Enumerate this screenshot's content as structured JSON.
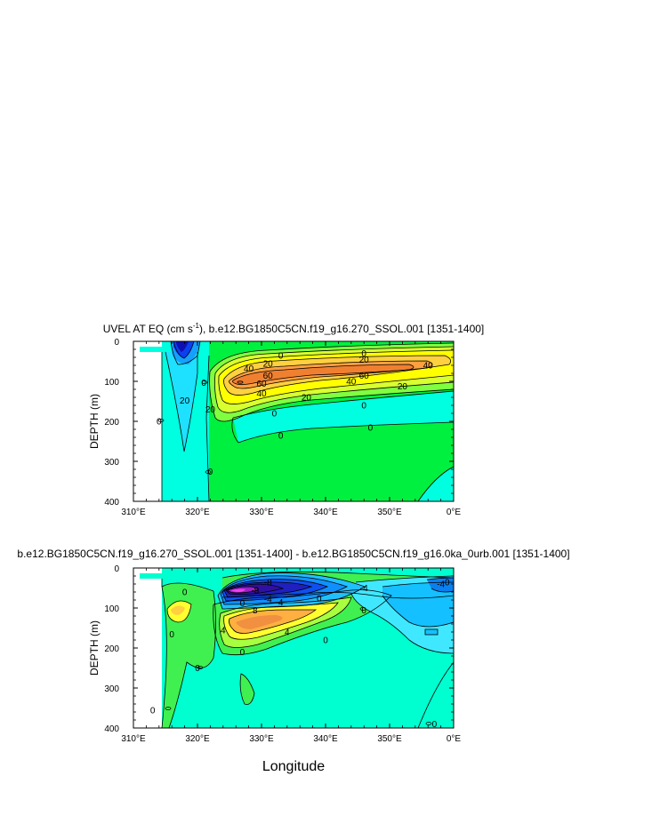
{
  "chart_data": [
    {
      "type": "contour",
      "title_prefix": "UVEL AT EQ (cm s",
      "title_sup": "-1",
      "title_suffix": "), b.e12.BG1850C5CN.f19_g16.270_SSOL.001 [1351-1400]",
      "ylabel": "DEPTH (m)",
      "xlabel": "",
      "xlim": [
        310,
        360
      ],
      "ylim": [
        400,
        0
      ],
      "xticks": [
        "310°E",
        "320°E",
        "330°E",
        "340°E",
        "350°E",
        "0°E"
      ],
      "xtick_values": [
        310,
        320,
        330,
        340,
        350,
        360
      ],
      "yticks": [
        "0",
        "100",
        "200",
        "300",
        "400"
      ],
      "ytick_values": [
        0,
        100,
        200,
        300,
        400
      ],
      "contour_labels": [
        {
          "text": "0",
          "x": 333,
          "y": 35
        },
        {
          "text": "0",
          "x": 346,
          "y": 30
        },
        {
          "text": "20",
          "x": 331,
          "y": 55
        },
        {
          "text": "20",
          "x": 346,
          "y": 45
        },
        {
          "text": "40",
          "x": 328,
          "y": 68
        },
        {
          "text": "40",
          "x": 356,
          "y": 60
        },
        {
          "text": "60",
          "x": 331,
          "y": 85
        },
        {
          "text": "60",
          "x": 346,
          "y": 85
        },
        {
          "text": "60",
          "x": 330,
          "y": 105
        },
        {
          "text": "40",
          "x": 344,
          "y": 100
        },
        {
          "text": "40",
          "x": 330,
          "y": 130
        },
        {
          "text": "20",
          "x": 337,
          "y": 140
        },
        {
          "text": "20",
          "x": 352,
          "y": 112
        },
        {
          "text": "20",
          "x": 318,
          "y": 148
        },
        {
          "text": "20",
          "x": 322,
          "y": 170
        },
        {
          "text": "0",
          "x": 332,
          "y": 180
        },
        {
          "text": "0",
          "x": 346,
          "y": 160
        },
        {
          "text": "0",
          "x": 333,
          "y": 235
        },
        {
          "text": "0",
          "x": 347,
          "y": 215
        },
        {
          "text": "0",
          "x": 314,
          "y": 200
        },
        {
          "text": "0",
          "x": 322,
          "y": 325
        },
        {
          "text": "0",
          "x": 321,
          "y": 103
        }
      ]
    },
    {
      "type": "contour",
      "title": "b.e12.BG1850C5CN.f19_g16.270_SSOL.001 [1351-1400] - b.e12.BG1850C5CN.f19_g16.0ka_0urb.001 [1351-1400]",
      "ylabel": "DEPTH (m)",
      "xlabel": "Longitude",
      "xlim": [
        310,
        360
      ],
      "ylim": [
        400,
        0
      ],
      "xticks": [
        "310°E",
        "320°E",
        "330°E",
        "340°E",
        "350°E",
        "0°E"
      ],
      "xtick_values": [
        310,
        320,
        330,
        340,
        350,
        360
      ],
      "yticks": [
        "0",
        "100",
        "200",
        "300",
        "400"
      ],
      "ytick_values": [
        0,
        100,
        200,
        300,
        400
      ],
      "contour_labels": [
        {
          "text": "-8",
          "x": 331,
          "y": 35
        },
        {
          "text": "-4",
          "x": 346,
          "y": 50
        },
        {
          "text": "-8",
          "x": 329,
          "y": 55
        },
        {
          "text": "0",
          "x": 359,
          "y": 35
        },
        {
          "text": "-4",
          "x": 358,
          "y": 40
        },
        {
          "text": "0",
          "x": 318,
          "y": 60
        },
        {
          "text": "-4",
          "x": 331,
          "y": 78
        },
        {
          "text": "0",
          "x": 327,
          "y": 88
        },
        {
          "text": "8",
          "x": 329,
          "y": 105
        },
        {
          "text": "4",
          "x": 333,
          "y": 85
        },
        {
          "text": "0",
          "x": 339,
          "y": 75
        },
        {
          "text": "4",
          "x": 334,
          "y": 160
        },
        {
          "text": "4",
          "x": 324,
          "y": 155
        },
        {
          "text": "0",
          "x": 316,
          "y": 165
        },
        {
          "text": "0",
          "x": 320,
          "y": 250
        },
        {
          "text": "0",
          "x": 327,
          "y": 210
        },
        {
          "text": "0",
          "x": 340,
          "y": 180
        },
        {
          "text": "0",
          "x": 313,
          "y": 355
        },
        {
          "text": "0",
          "x": 357,
          "y": 390
        },
        {
          "text": "0",
          "x": 346,
          "y": 105
        }
      ]
    }
  ]
}
